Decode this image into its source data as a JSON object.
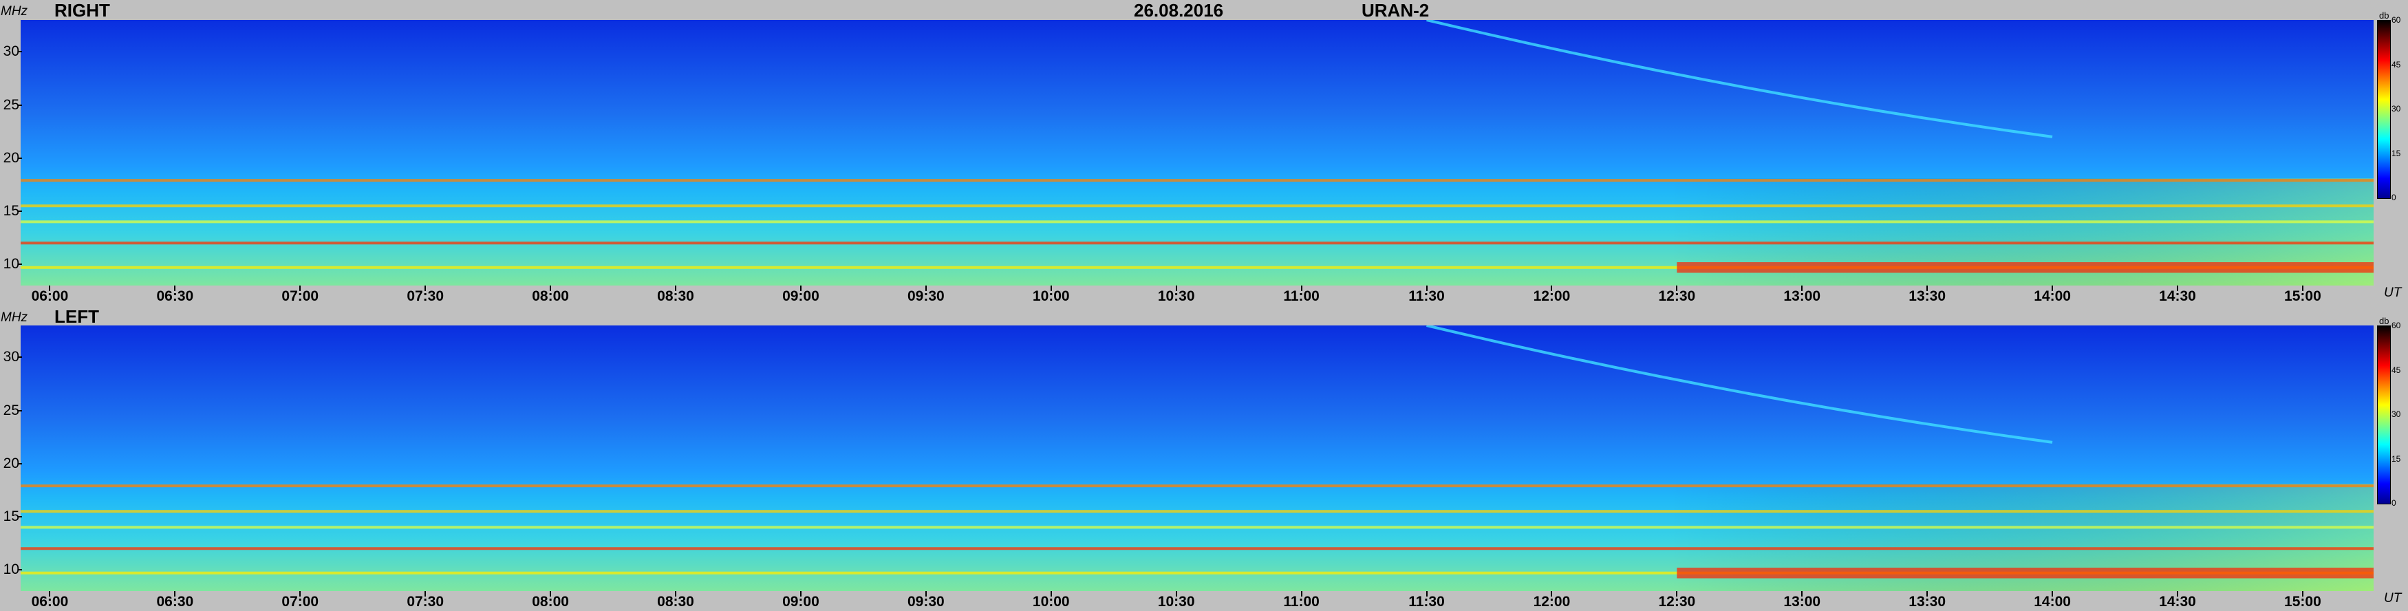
{
  "header": {
    "date": "26.08.2016",
    "instrument": "URAN-2"
  },
  "panels": [
    {
      "id": "right",
      "title": "RIGHT"
    },
    {
      "id": "left",
      "title": "LEFT"
    }
  ],
  "axes": {
    "y_unit": "MHz",
    "x_unit": "UT",
    "colorbar_unit": "db"
  },
  "colors": {
    "background": "#c0c0c0",
    "colormap": [
      "#00008f",
      "#0000ff",
      "#0080ff",
      "#00ffff",
      "#80ff80",
      "#ffff00",
      "#ff8000",
      "#ff0000",
      "#800000",
      "#000000"
    ]
  },
  "chart_data": {
    "type": "heatmap",
    "title": "26.08.2016 URAN-2",
    "panels": [
      "RIGHT",
      "LEFT"
    ],
    "x_label": "UT",
    "y_label": "MHz",
    "x_ticks": [
      "06:00",
      "06:30",
      "07:00",
      "07:30",
      "08:00",
      "08:30",
      "09:00",
      "09:30",
      "10:00",
      "10:30",
      "11:00",
      "11:30",
      "12:00",
      "12:30",
      "13:00",
      "13:30",
      "14:00",
      "14:30",
      "15:00"
    ],
    "x_range": [
      "05:53",
      "15:17"
    ],
    "y_ticks": [
      10,
      15,
      20,
      25,
      30
    ],
    "y_range": [
      8,
      33
    ],
    "colorbar": {
      "label": "db",
      "ticks": [
        0,
        15,
        30,
        45,
        60
      ],
      "range": [
        0,
        60
      ]
    },
    "notes_visible_features": {
      "persistent_narrowband_lines_mhz": [
        9.7,
        12,
        14,
        15.5,
        17.9
      ],
      "drifting_feature": {
        "start_time": "11:30",
        "end_time": "14:00",
        "start_freq_mhz": 33,
        "end_freq_mhz": 22
      },
      "high_intensity_after": "12:30"
    }
  }
}
